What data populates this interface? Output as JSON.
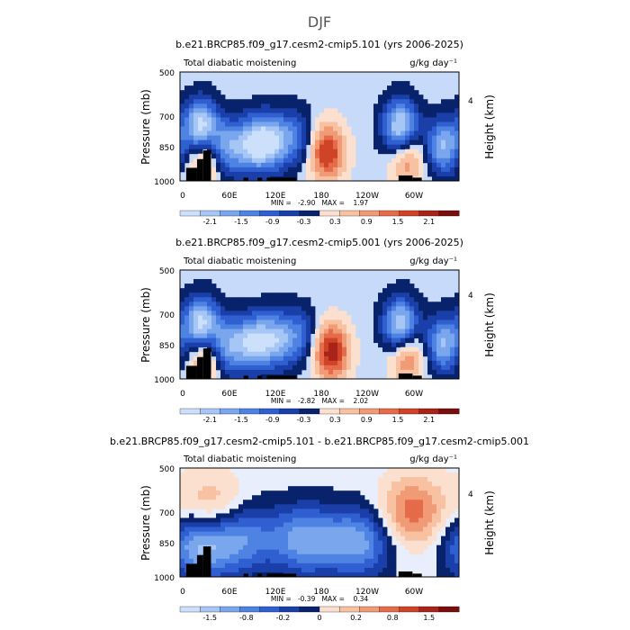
{
  "figure": {
    "title": "DJF"
  },
  "colors": {
    "neg": [
      "#08226b",
      "#1a3fa8",
      "#2f5fd1",
      "#4e82e3",
      "#7aa6ee",
      "#a6c6f5",
      "#cde0fb"
    ],
    "pos": [
      "#fbe0cf",
      "#f7c1a2",
      "#f09a76",
      "#e56b4a",
      "#cf4427",
      "#a8231a",
      "#7a0d0d"
    ],
    "terrain": "#000000"
  },
  "chart_data": [
    {
      "type": "heatmap",
      "title": "b.e21.BRCP85.f09_g17.cesm2-cmip5.101 (yrs 2006-2025)",
      "subtitle_left": "Total diabatic moistening",
      "subtitle_right": "g/kg day⁻¹",
      "ylabel": "Pressure (mb)",
      "ylabel_right": "Height (km)",
      "yticks": [
        "500",
        "700",
        "850",
        "1000"
      ],
      "yticks_right": [
        "4"
      ],
      "xticks": [
        "0",
        "60E",
        "120E",
        "180",
        "120W",
        "60W"
      ],
      "stats": "MIN =   -2.90   MAX =    1.97",
      "colorbar_labels": [
        "-2.1",
        "-1.5",
        "-0.9",
        "-0.3",
        "0.3",
        "0.9",
        "1.5",
        "2.1"
      ],
      "lon_range": [
        0,
        360
      ],
      "p_range": [
        1000,
        500
      ],
      "features": [
        {
          "lon": 27,
          "p": 760,
          "value": -2.6
        },
        {
          "lon": 33,
          "p": 880,
          "value": 1.5
        },
        {
          "lon": 60,
          "p": 850,
          "value": -1.6
        },
        {
          "lon": 95,
          "p": 830,
          "value": -1.9
        },
        {
          "lon": 120,
          "p": 820,
          "value": -1.7
        },
        {
          "lon": 150,
          "p": 800,
          "value": -1.0
        },
        {
          "lon": 190,
          "p": 870,
          "value": 1.8
        },
        {
          "lon": 285,
          "p": 760,
          "value": -2.5
        },
        {
          "lon": 292,
          "p": 880,
          "value": 1.4
        },
        {
          "lon": 340,
          "p": 840,
          "value": -1.8
        }
      ]
    },
    {
      "type": "heatmap",
      "title": "b.e21.BRCP85.f09_g17.cesm2-cmip5.001 (yrs 2006-2025)",
      "subtitle_left": "Total diabatic moistening",
      "subtitle_right": "g/kg day⁻¹",
      "ylabel": "Pressure (mb)",
      "ylabel_right": "Height (km)",
      "yticks": [
        "500",
        "700",
        "850",
        "1000"
      ],
      "yticks_right": [
        "4"
      ],
      "xticks": [
        "0",
        "60E",
        "120E",
        "180",
        "120W",
        "60W"
      ],
      "stats": "MIN =   -2.82   MAX =    2.02",
      "colorbar_labels": [
        "-2.1",
        "-1.5",
        "-0.9",
        "-0.3",
        "0.3",
        "0.9",
        "1.5",
        "2.1"
      ],
      "lon_range": [
        0,
        360
      ],
      "p_range": [
        1000,
        500
      ],
      "features": [
        {
          "lon": 27,
          "p": 760,
          "value": -2.6
        },
        {
          "lon": 33,
          "p": 880,
          "value": 1.6
        },
        {
          "lon": 60,
          "p": 850,
          "value": -1.7
        },
        {
          "lon": 95,
          "p": 830,
          "value": -1.9
        },
        {
          "lon": 125,
          "p": 820,
          "value": -1.6
        },
        {
          "lon": 155,
          "p": 800,
          "value": -1.0
        },
        {
          "lon": 195,
          "p": 875,
          "value": 2.0
        },
        {
          "lon": 285,
          "p": 760,
          "value": -2.4
        },
        {
          "lon": 292,
          "p": 880,
          "value": 1.5
        },
        {
          "lon": 340,
          "p": 840,
          "value": -1.8
        }
      ]
    },
    {
      "type": "heatmap",
      "title": "b.e21.BRCP85.f09_g17.cesm2-cmip5.101 - b.e21.BRCP85.f09_g17.cesm2-cmip5.001",
      "subtitle_left": "Total diabatic moistening",
      "subtitle_right": "g/kg day⁻¹",
      "ylabel": "Pressure (mb)",
      "ylabel_right": "Height (km)",
      "yticks": [
        "500",
        "700",
        "850",
        "1000"
      ],
      "yticks_right": [
        "4"
      ],
      "xticks": [
        "0",
        "60E",
        "120E",
        "180",
        "120W",
        "60W"
      ],
      "stats": "MIN =   -0.39   MAX =    0.34",
      "colorbar_labels": [
        "-1.5",
        "-0.8",
        "-0.2",
        "0",
        "0.2",
        "0.8",
        "1.5"
      ],
      "lon_range": [
        0,
        360
      ],
      "p_range": [
        1000,
        500
      ],
      "features": [
        {
          "lon": 25,
          "p": 850,
          "value": -0.35
        },
        {
          "lon": 80,
          "p": 820,
          "value": -0.25
        },
        {
          "lon": 160,
          "p": 830,
          "value": -0.3
        },
        {
          "lon": 230,
          "p": 840,
          "value": -0.3
        },
        {
          "lon": 40,
          "p": 700,
          "value": 0.2
        },
        {
          "lon": 300,
          "p": 700,
          "value": 0.25
        }
      ]
    }
  ]
}
